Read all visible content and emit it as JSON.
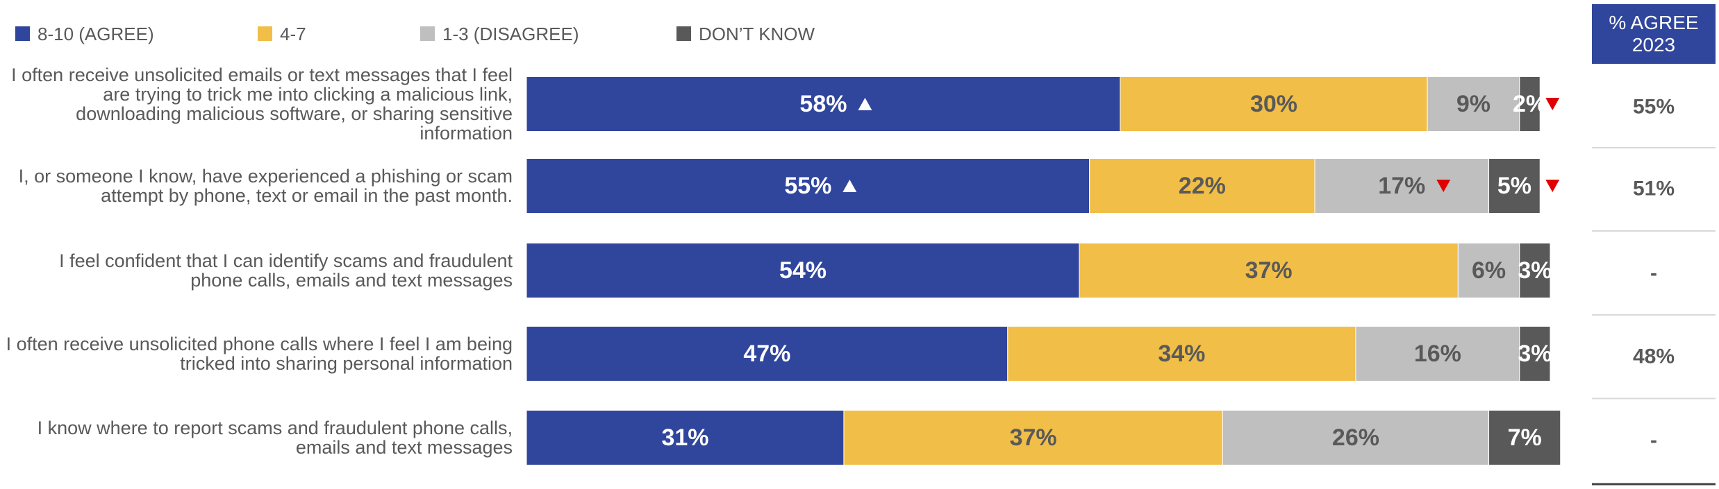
{
  "chart_data": {
    "type": "stacked-bar-horizontal",
    "categories": [
      "I often receive unsolicited emails or text messages that I feel are trying to trick me into clicking a malicious link, downloading malicious software, or sharing sensitive information",
      "I, or someone I know, have experienced a phishing or scam attempt by phone, text or email in the past month.",
      "I feel confident that I can identify scams and fraudulent phone calls, emails and text messages",
      "I often receive unsolicited phone calls where I feel I am being tricked into sharing personal information",
      "I know where to report scams and fraudulent phone calls, emails and text messages"
    ],
    "xlim": [
      0,
      100
    ],
    "legend": "top",
    "series": [
      {
        "name": "8-10 (AGREE)",
        "color": "#30469d",
        "label_color": "#ffffff",
        "values": [
          58,
          55,
          54,
          47,
          31
        ],
        "value_labels": [
          "58%",
          "55%",
          "54%",
          "47%",
          "31%"
        ],
        "arrows": [
          "up",
          "up",
          null,
          null,
          null
        ]
      },
      {
        "name": "4-7",
        "color": "#f1be48",
        "label_color": "#595959",
        "values": [
          30,
          22,
          37,
          34,
          37
        ],
        "value_labels": [
          "30%",
          "22%",
          "37%",
          "34%",
          "37%"
        ],
        "arrows": [
          null,
          null,
          null,
          null,
          null
        ]
      },
      {
        "name": "1-3 (DISAGREE)",
        "color": "#bfbfbf",
        "label_color": "#595959",
        "values": [
          9,
          17,
          6,
          16,
          26
        ],
        "value_labels": [
          "9%",
          "17%",
          "6%",
          "16%",
          "26%"
        ],
        "arrows": [
          null,
          "down",
          null,
          null,
          null
        ]
      },
      {
        "name": "DON’T KNOW",
        "color": "#595959",
        "label_color": "#ffffff",
        "values": [
          2,
          5,
          3,
          3,
          7
        ],
        "value_labels": [
          "2%",
          "5%",
          "3%",
          "3%",
          "7%"
        ],
        "arrows": [
          "down",
          "down",
          null,
          null,
          null
        ]
      }
    ],
    "prior": {
      "title": "% AGREE 2023",
      "values": [
        55,
        51,
        null,
        48,
        null
      ],
      "value_labels": [
        "55%",
        "51%",
        "-",
        "48%",
        "-"
      ]
    }
  }
}
